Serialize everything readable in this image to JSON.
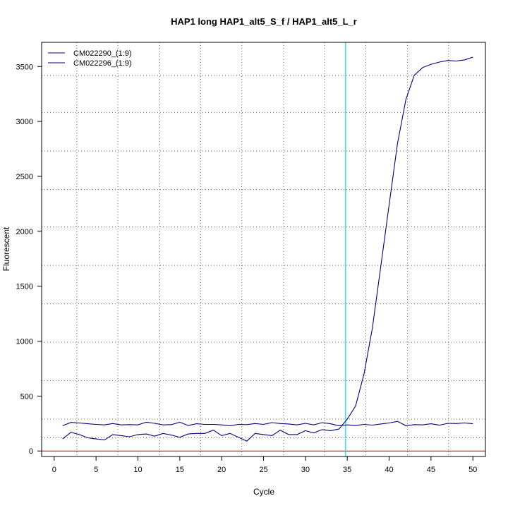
{
  "chart_data": {
    "type": "line",
    "title": "HAP1 long HAP1_alt5_S_f / HAP1_alt5_L_r",
    "xlabel": "Cycle",
    "ylabel": "Fluorescent",
    "xlim": [
      -1.5,
      51.5
    ],
    "ylim": [
      -50,
      3720
    ],
    "x_ticks": [
      0,
      5,
      10,
      15,
      20,
      25,
      30,
      35,
      40,
      45,
      50
    ],
    "y_ticks": [
      0,
      500,
      1000,
      1500,
      2000,
      2500,
      3000,
      3500
    ],
    "grid": true,
    "grid_style": "dotted",
    "v_grid": [
      2.7,
      7.6,
      12.6,
      17.5,
      22.4,
      27.4,
      32.3,
      37.2,
      42.2,
      47.1
    ],
    "h_grid": [
      120,
      290,
      640,
      990,
      1340,
      1690,
      2040,
      2380,
      2730,
      3080,
      3420
    ],
    "legend_position": "top-left",
    "threshold": {
      "cycle": 34.8,
      "color": "#00e0e0"
    },
    "baseline": {
      "value": 0,
      "color": "#c00000"
    },
    "series": [
      {
        "name": "CM022290_(1:9)",
        "color": "#000080",
        "x": [
          1,
          2,
          3,
          4,
          5,
          6,
          7,
          8,
          9,
          10,
          11,
          12,
          13,
          14,
          15,
          16,
          17,
          18,
          19,
          20,
          21,
          22,
          23,
          24,
          25,
          26,
          27,
          28,
          29,
          30,
          31,
          32,
          33,
          34,
          35,
          36,
          37,
          38,
          39,
          40,
          41,
          42,
          43,
          44,
          45,
          46,
          47,
          48,
          49,
          50
        ],
        "values": [
          230,
          260,
          255,
          248,
          242,
          238,
          250,
          238,
          240,
          238,
          262,
          252,
          238,
          240,
          262,
          232,
          248,
          242,
          242,
          238,
          230,
          242,
          240,
          250,
          242,
          258,
          250,
          246,
          238,
          252,
          238,
          258,
          248,
          230,
          238,
          232,
          242,
          236,
          246,
          255,
          270,
          230,
          240,
          238,
          248,
          235,
          252,
          250,
          255,
          248
        ]
      },
      {
        "name": "CM022296_(1:9)",
        "color": "#000080",
        "x": [
          1,
          2,
          3,
          4,
          5,
          6,
          7,
          8,
          9,
          10,
          11,
          12,
          13,
          14,
          15,
          16,
          17,
          18,
          19,
          20,
          21,
          22,
          23,
          24,
          25,
          26,
          27,
          28,
          29,
          30,
          31,
          32,
          33,
          34,
          35,
          36,
          37,
          38,
          39,
          40,
          41,
          42,
          43,
          44,
          45,
          46,
          47,
          48,
          49,
          50
        ],
        "values": [
          110,
          170,
          150,
          120,
          110,
          100,
          150,
          140,
          130,
          150,
          155,
          135,
          160,
          145,
          125,
          155,
          160,
          160,
          190,
          140,
          160,
          125,
          90,
          160,
          150,
          140,
          190,
          150,
          150,
          185,
          165,
          195,
          185,
          200,
          290,
          410,
          700,
          1120,
          1680,
          2240,
          2800,
          3200,
          3420,
          3490,
          3520,
          3540,
          3555,
          3550,
          3560,
          3585
        ]
      }
    ]
  }
}
